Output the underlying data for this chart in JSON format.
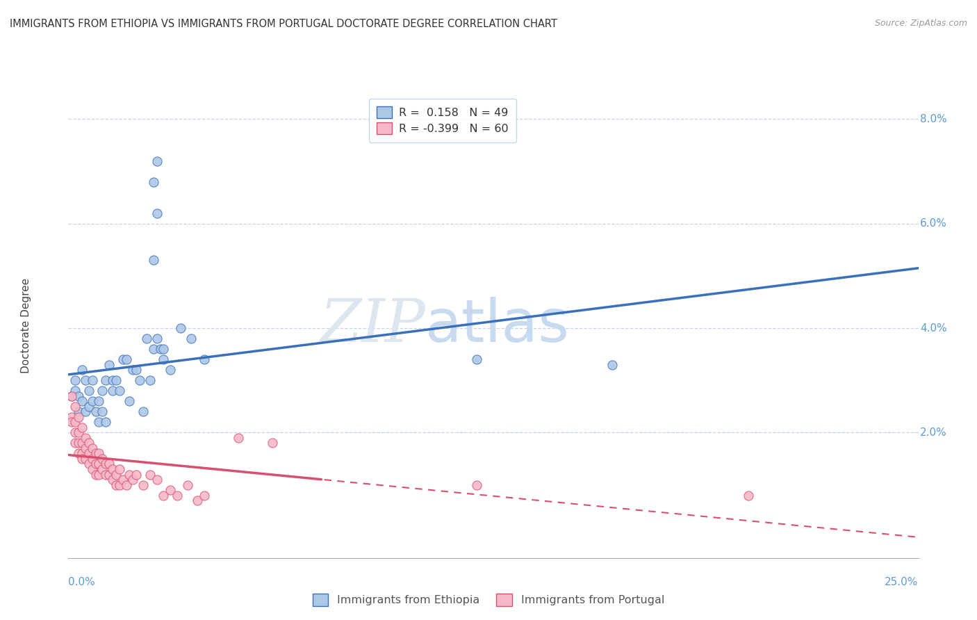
{
  "title": "IMMIGRANTS FROM ETHIOPIA VS IMMIGRANTS FROM PORTUGAL DOCTORATE DEGREE CORRELATION CHART",
  "source": "Source: ZipAtlas.com",
  "ylabel": "Doctorate Degree",
  "ylabel_right_values": [
    0.08,
    0.06,
    0.04,
    0.02
  ],
  "ylabel_right_labels": [
    "8.0%",
    "6.0%",
    "4.0%",
    "2.0%"
  ],
  "xmin": 0.0,
  "xmax": 0.25,
  "ymin": -0.004,
  "ymax": 0.085,
  "r_ethiopia": 0.158,
  "n_ethiopia": 49,
  "r_portugal": -0.399,
  "n_portugal": 60,
  "legend_label_1": "Immigrants from Ethiopia",
  "legend_label_2": "Immigrants from Portugal",
  "color_ethiopia": "#adc8e6",
  "color_portugal": "#f5b8c8",
  "line_color_ethiopia": "#3a6fbc",
  "line_color_portugal": "#d94f6e",
  "watermark_zip": "ZIP",
  "watermark_atlas": "atlas",
  "background_color": "#ffffff",
  "ethiopia_scatter": [
    [
      0.001,
      0.027
    ],
    [
      0.002,
      0.028
    ],
    [
      0.002,
      0.03
    ],
    [
      0.003,
      0.027
    ],
    [
      0.003,
      0.024
    ],
    [
      0.004,
      0.032
    ],
    [
      0.004,
      0.026
    ],
    [
      0.005,
      0.03
    ],
    [
      0.005,
      0.024
    ],
    [
      0.006,
      0.028
    ],
    [
      0.006,
      0.025
    ],
    [
      0.007,
      0.03
    ],
    [
      0.007,
      0.026
    ],
    [
      0.008,
      0.024
    ],
    [
      0.009,
      0.026
    ],
    [
      0.009,
      0.022
    ],
    [
      0.01,
      0.028
    ],
    [
      0.01,
      0.024
    ],
    [
      0.011,
      0.022
    ],
    [
      0.011,
      0.03
    ],
    [
      0.012,
      0.033
    ],
    [
      0.013,
      0.03
    ],
    [
      0.013,
      0.028
    ],
    [
      0.014,
      0.03
    ],
    [
      0.015,
      0.028
    ],
    [
      0.016,
      0.034
    ],
    [
      0.017,
      0.034
    ],
    [
      0.018,
      0.026
    ],
    [
      0.019,
      0.032
    ],
    [
      0.02,
      0.032
    ],
    [
      0.021,
      0.03
    ],
    [
      0.022,
      0.024
    ],
    [
      0.023,
      0.038
    ],
    [
      0.024,
      0.03
    ],
    [
      0.025,
      0.036
    ],
    [
      0.026,
      0.038
    ],
    [
      0.027,
      0.036
    ],
    [
      0.028,
      0.036
    ],
    [
      0.028,
      0.034
    ],
    [
      0.03,
      0.032
    ],
    [
      0.033,
      0.04
    ],
    [
      0.036,
      0.038
    ],
    [
      0.04,
      0.034
    ],
    [
      0.025,
      0.068
    ],
    [
      0.026,
      0.072
    ],
    [
      0.026,
      0.062
    ],
    [
      0.025,
      0.053
    ],
    [
      0.16,
      0.033
    ],
    [
      0.12,
      0.034
    ]
  ],
  "portugal_scatter": [
    [
      0.001,
      0.027
    ],
    [
      0.001,
      0.023
    ],
    [
      0.001,
      0.022
    ],
    [
      0.002,
      0.025
    ],
    [
      0.002,
      0.022
    ],
    [
      0.002,
      0.02
    ],
    [
      0.002,
      0.018
    ],
    [
      0.003,
      0.023
    ],
    [
      0.003,
      0.02
    ],
    [
      0.003,
      0.018
    ],
    [
      0.003,
      0.016
    ],
    [
      0.004,
      0.021
    ],
    [
      0.004,
      0.018
    ],
    [
      0.004,
      0.016
    ],
    [
      0.004,
      0.015
    ],
    [
      0.005,
      0.019
    ],
    [
      0.005,
      0.017
    ],
    [
      0.005,
      0.015
    ],
    [
      0.006,
      0.018
    ],
    [
      0.006,
      0.016
    ],
    [
      0.006,
      0.014
    ],
    [
      0.007,
      0.017
    ],
    [
      0.007,
      0.015
    ],
    [
      0.007,
      0.013
    ],
    [
      0.008,
      0.016
    ],
    [
      0.008,
      0.014
    ],
    [
      0.008,
      0.012
    ],
    [
      0.009,
      0.016
    ],
    [
      0.009,
      0.014
    ],
    [
      0.009,
      0.012
    ],
    [
      0.01,
      0.015
    ],
    [
      0.01,
      0.013
    ],
    [
      0.011,
      0.014
    ],
    [
      0.011,
      0.012
    ],
    [
      0.012,
      0.014
    ],
    [
      0.012,
      0.012
    ],
    [
      0.013,
      0.013
    ],
    [
      0.013,
      0.011
    ],
    [
      0.014,
      0.012
    ],
    [
      0.014,
      0.01
    ],
    [
      0.015,
      0.013
    ],
    [
      0.015,
      0.01
    ],
    [
      0.016,
      0.011
    ],
    [
      0.017,
      0.01
    ],
    [
      0.018,
      0.012
    ],
    [
      0.019,
      0.011
    ],
    [
      0.02,
      0.012
    ],
    [
      0.022,
      0.01
    ],
    [
      0.024,
      0.012
    ],
    [
      0.026,
      0.011
    ],
    [
      0.028,
      0.008
    ],
    [
      0.03,
      0.009
    ],
    [
      0.032,
      0.008
    ],
    [
      0.035,
      0.01
    ],
    [
      0.038,
      0.007
    ],
    [
      0.04,
      0.008
    ],
    [
      0.05,
      0.019
    ],
    [
      0.06,
      0.018
    ],
    [
      0.12,
      0.01
    ],
    [
      0.2,
      0.008
    ]
  ]
}
